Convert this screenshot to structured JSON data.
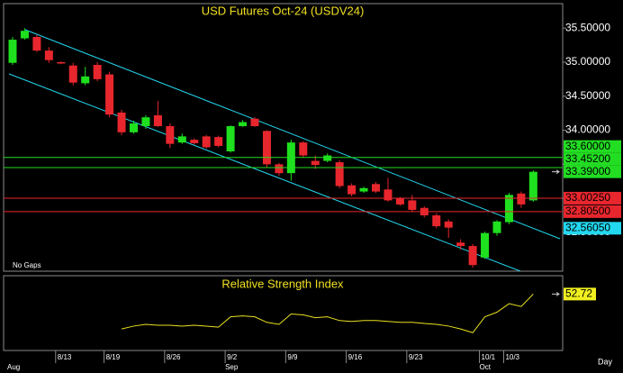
{
  "chart_data": {
    "type": "candlestick",
    "title": "USD Futures Oct-24 (USDV24)",
    "note": "No Gaps",
    "period": "Day",
    "categories": [
      null,
      null,
      null,
      null,
      "8/13",
      null,
      null,
      null,
      "8/19",
      null,
      null,
      null,
      null,
      "8/26",
      null,
      null,
      null,
      null,
      "9/2",
      null,
      null,
      null,
      null,
      "9/9",
      null,
      null,
      null,
      null,
      "9/16",
      null,
      null,
      null,
      null,
      "9/23",
      null,
      null,
      null,
      null,
      null,
      "10/1",
      null,
      "10/3",
      null,
      null
    ],
    "months": [
      "Aug",
      null,
      null,
      null,
      null,
      null,
      null,
      null,
      null,
      null,
      null,
      null,
      null,
      null,
      null,
      null,
      null,
      null,
      "Sep",
      null,
      null,
      null,
      null,
      null,
      null,
      null,
      null,
      null,
      null,
      null,
      null,
      null,
      null,
      null,
      null,
      null,
      null,
      null,
      null,
      "Oct",
      null,
      null,
      null,
      null
    ],
    "open": [
      34.99,
      35.35,
      35.37,
      35.17,
      35.0,
      34.95,
      34.69,
      34.96,
      34.82,
      34.26,
      33.97,
      34.06,
      34.22,
      34.06,
      33.82,
      33.86,
      33.91,
      33.9,
      33.69,
      34.06,
      34.17,
      33.99,
      33.5,
      33.37,
      33.82,
      33.55,
      33.55,
      33.53,
      33.19,
      33.1,
      33.21,
      33.13,
      33.0,
      32.97,
      32.86,
      32.75,
      32.66,
      32.35,
      32.3,
      32.13,
      32.49,
      32.65,
      33.07,
      32.97
    ],
    "high": [
      35.37,
      35.5,
      35.4,
      35.22,
      35.01,
      34.99,
      34.93,
      35.0,
      34.86,
      34.3,
      34.14,
      34.22,
      34.43,
      34.1,
      33.95,
      33.88,
      33.93,
      33.92,
      34.07,
      34.15,
      34.19,
      34.0,
      33.52,
      33.86,
      33.84,
      33.63,
      33.66,
      33.56,
      33.22,
      33.17,
      33.24,
      33.3,
      33.02,
      33.05,
      32.88,
      32.78,
      32.69,
      32.4,
      32.33,
      32.51,
      32.68,
      33.08,
      33.1,
      33.41
    ],
    "low": [
      34.96,
      35.33,
      35.15,
      34.99,
      34.97,
      34.66,
      34.66,
      34.72,
      34.19,
      33.93,
      33.95,
      34.02,
      34.05,
      33.74,
      33.8,
      33.79,
      33.73,
      33.75,
      33.67,
      34.05,
      34.05,
      33.45,
      33.33,
      33.26,
      33.6,
      33.43,
      33.53,
      33.15,
      33.03,
      33.08,
      33.08,
      32.95,
      32.89,
      32.8,
      32.72,
      32.56,
      32.42,
      32.25,
      31.98,
      32.11,
      32.45,
      32.62,
      32.86,
      32.95
    ],
    "close": [
      35.33,
      35.46,
      35.17,
      35.03,
      34.98,
      34.7,
      34.79,
      34.75,
      34.23,
      33.97,
      34.1,
      34.19,
      34.06,
      33.8,
      33.91,
      33.81,
      33.75,
      33.77,
      34.06,
      34.12,
      34.06,
      33.5,
      33.37,
      33.82,
      33.63,
      33.49,
      33.63,
      33.18,
      33.06,
      33.15,
      33.1,
      32.97,
      32.91,
      32.83,
      32.75,
      32.59,
      32.57,
      32.3,
      32.02,
      32.49,
      32.66,
      33.05,
      32.91,
      33.39
    ],
    "up_color": "#1ee01e",
    "down_color": "#e8262d",
    "ylim": [
      31.93,
      35.86
    ],
    "yticks": [
      {
        "value": 35.5,
        "label": "35.50000"
      },
      {
        "value": 35.0,
        "label": "35.00000"
      },
      {
        "value": 34.5,
        "label": "34.50000"
      },
      {
        "value": 34.0,
        "label": "34.00000"
      },
      {
        "value": 33.5,
        "label": "33.50000"
      },
      {
        "value": 33.0,
        "label": "33.00000"
      },
      {
        "value": 32.5,
        "label": "32.50000"
      }
    ],
    "levels": [
      {
        "value": 33.6,
        "label": "33.60000",
        "color": "#22dd22",
        "line": true
      },
      {
        "value": 33.452,
        "label": "33.45200",
        "color": "#22dd22",
        "line": true
      },
      {
        "value": 33.39,
        "label": "33.39000",
        "color": "#22dd22",
        "line": false,
        "marker": "arrow"
      },
      {
        "value": 33.0025,
        "label": "33.00250",
        "color": "#e8262d",
        "line": true
      },
      {
        "value": 32.805,
        "label": "32.80500",
        "color": "#e8262d",
        "line": true
      },
      {
        "value": 32.5605,
        "label": "32.56050",
        "color": "#22d8f0",
        "line": false
      }
    ],
    "indicator": {
      "title": "Relative Strength Index",
      "color": "#e8e020",
      "ylim": [
        15,
        65
      ],
      "values": [
        null,
        null,
        null,
        null,
        null,
        null,
        null,
        null,
        null,
        29.4,
        31.3,
        32.5,
        31.9,
        31.9,
        31.3,
        31.9,
        31.3,
        30.6,
        37.5,
        38.1,
        37.5,
        33.8,
        32.5,
        39.4,
        38.8,
        36.9,
        37.5,
        35.0,
        34.4,
        35.0,
        35.0,
        34.4,
        33.8,
        33.8,
        33.1,
        32.5,
        31.3,
        29.4,
        26.9,
        37.5,
        40.6,
        46.3,
        44.4,
        52.72
      ]
    }
  }
}
